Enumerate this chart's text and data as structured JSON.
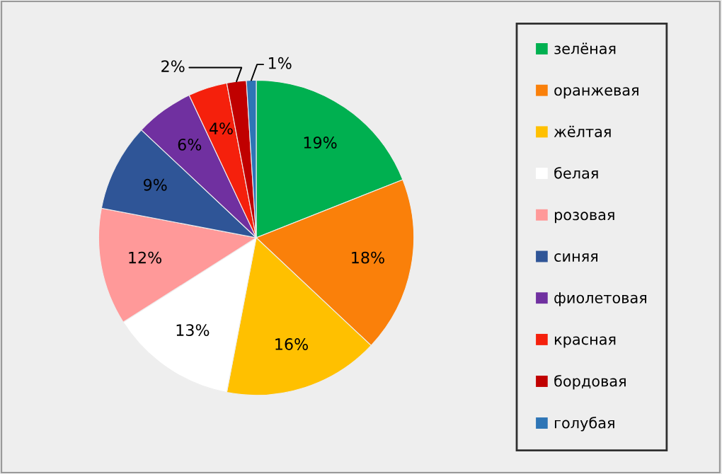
{
  "chart_data": {
    "type": "pie",
    "categories": [
      "зелёная",
      "оранжевая",
      "жёлтая",
      "белая",
      "розовая",
      "синяя",
      "фиолетовая",
      "красная",
      "бордовая",
      "голубая"
    ],
    "values": [
      19,
      18,
      16,
      13,
      12,
      9,
      6,
      4,
      2,
      1
    ],
    "colors": [
      "#00b050",
      "#fa800a",
      "#ffc000",
      "#ffffff",
      "#ff9999",
      "#2f5597",
      "#7030a0",
      "#f5200c",
      "#c00000",
      "#2e75b6"
    ],
    "value_labels": [
      "19%",
      "18%",
      "16%",
      "13%",
      "12%",
      "9%",
      "6%",
      "4%",
      "2%",
      "1%"
    ],
    "legend": "right"
  }
}
